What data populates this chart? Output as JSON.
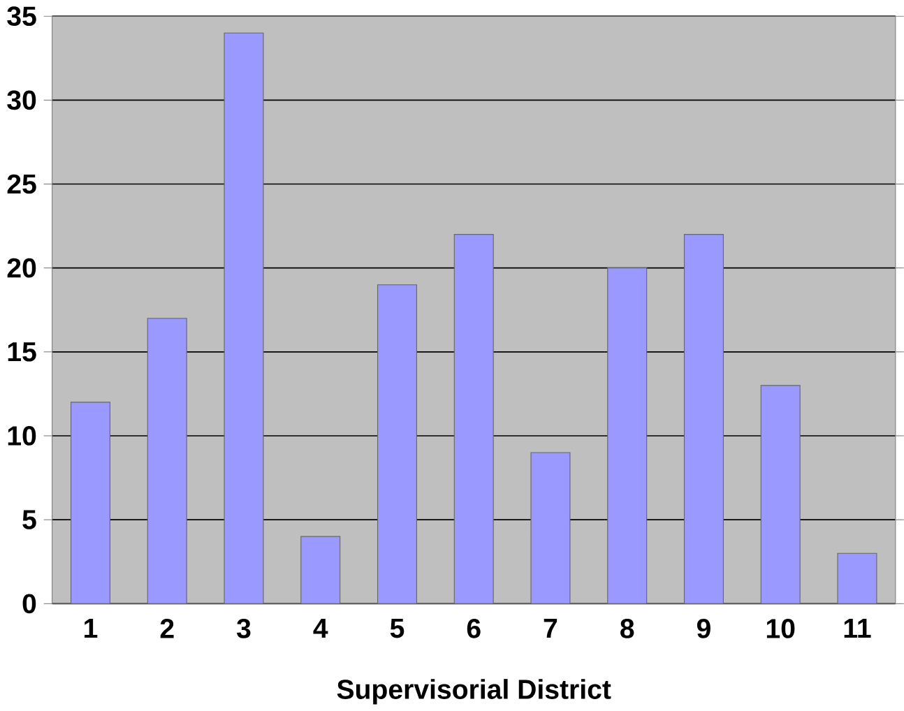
{
  "chart_data": {
    "type": "bar",
    "xlabel": "Supervisorial District",
    "categories": [
      "1",
      "2",
      "3",
      "4",
      "5",
      "6",
      "7",
      "8",
      "9",
      "10",
      "11"
    ],
    "values": [
      12,
      17,
      34,
      4,
      19,
      22,
      9,
      20,
      22,
      13,
      3
    ],
    "color": "#9999ff",
    "ylim": [
      0,
      35
    ],
    "yticks": [
      0,
      5,
      10,
      15,
      20,
      25,
      30,
      35
    ],
    "grid": "y"
  }
}
